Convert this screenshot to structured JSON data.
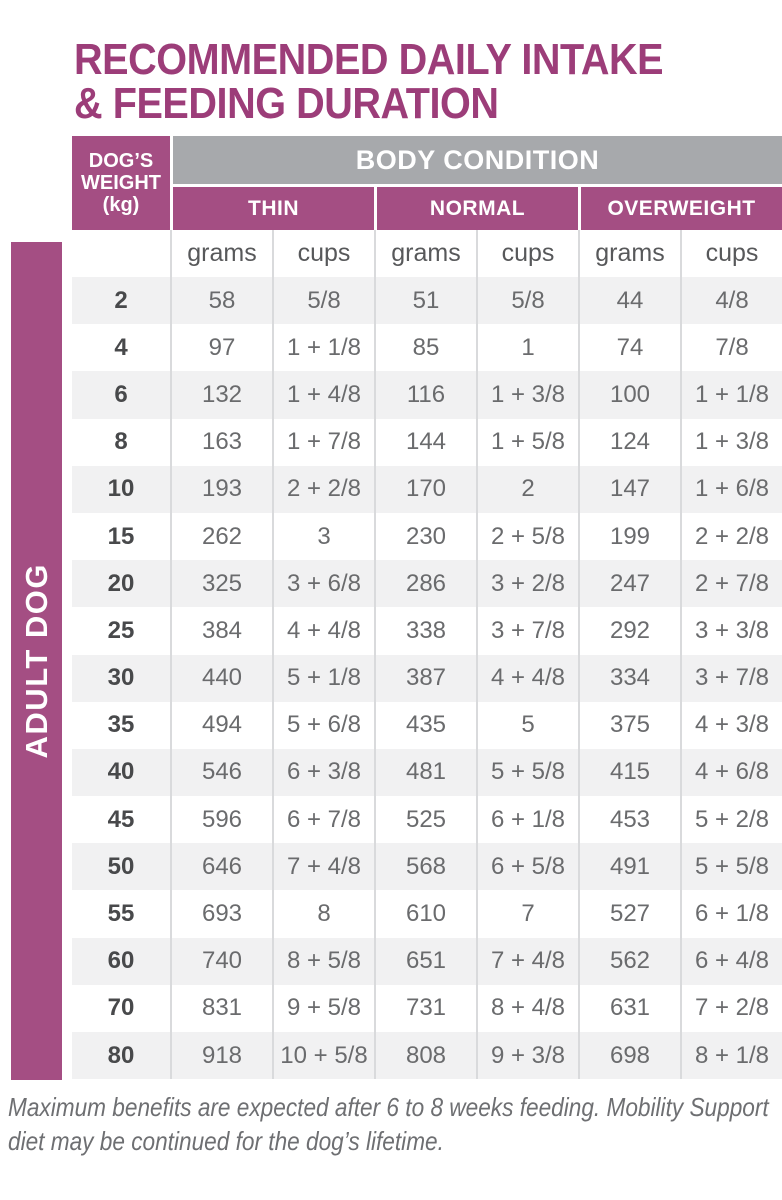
{
  "colors": {
    "accent": "#a44e83",
    "title": "#9c3d79",
    "header_gray": "#a7a9ac",
    "stripe": "#f1f1f2",
    "separator": "#d9dadc",
    "value_text": "#6a6b6d",
    "weight_text": "#48494b",
    "unit_text": "#57585a",
    "footer_text": "#6e6f72"
  },
  "title": {
    "lines": [
      "RECOMMENDED DAILY INTAKE",
      "& FEEDING DURATION"
    ]
  },
  "sidebar": {
    "label": "ADULT DOG"
  },
  "table": {
    "weight_header_lines": [
      "DOG’S",
      "WEIGHT",
      "(kg)"
    ],
    "body_condition_label": "BODY CONDITION",
    "groups": [
      "THIN",
      "NORMAL",
      "OVERWEIGHT"
    ],
    "units_row": [
      "grams",
      "cups",
      "grams",
      "cups",
      "grams",
      "cups"
    ],
    "rows": [
      [
        "2",
        "58",
        "5/8",
        "51",
        "5/8",
        "44",
        "4/8"
      ],
      [
        "4",
        "97",
        "1 + 1/8",
        "85",
        "1",
        "74",
        "7/8"
      ],
      [
        "6",
        "132",
        "1 + 4/8",
        "116",
        "1 + 3/8",
        "100",
        "1 + 1/8"
      ],
      [
        "8",
        "163",
        "1 + 7/8",
        "144",
        "1 + 5/8",
        "124",
        "1 + 3/8"
      ],
      [
        "10",
        "193",
        "2 + 2/8",
        "170",
        "2",
        "147",
        "1 + 6/8"
      ],
      [
        "15",
        "262",
        "3",
        "230",
        "2 + 5/8",
        "199",
        "2 + 2/8"
      ],
      [
        "20",
        "325",
        "3 + 6/8",
        "286",
        "3 + 2/8",
        "247",
        "2 + 7/8"
      ],
      [
        "25",
        "384",
        "4 + 4/8",
        "338",
        "3 + 7/8",
        "292",
        "3 + 3/8"
      ],
      [
        "30",
        "440",
        "5 + 1/8",
        "387",
        "4 + 4/8",
        "334",
        "3 + 7/8"
      ],
      [
        "35",
        "494",
        "5 + 6/8",
        "435",
        "5",
        "375",
        "4 + 3/8"
      ],
      [
        "40",
        "546",
        "6 + 3/8",
        "481",
        "5 + 5/8",
        "415",
        "4 + 6/8"
      ],
      [
        "45",
        "596",
        "6 + 7/8",
        "525",
        "6 + 1/8",
        "453",
        "5 + 2/8"
      ],
      [
        "50",
        "646",
        "7 + 4/8",
        "568",
        "6 + 5/8",
        "491",
        "5 + 5/8"
      ],
      [
        "55",
        "693",
        "8",
        "610",
        "7",
        "527",
        "6 + 1/8"
      ],
      [
        "60",
        "740",
        "8 + 5/8",
        "651",
        "7 + 4/8",
        "562",
        "6 + 4/8"
      ],
      [
        "70",
        "831",
        "9 + 5/8",
        "731",
        "8 + 4/8",
        "631",
        "7 + 2/8"
      ],
      [
        "80",
        "918",
        "10 + 5/8",
        "808",
        "9 + 3/8",
        "698",
        "8 + 1/8"
      ]
    ]
  },
  "footer": {
    "lines": [
      "Maximum benefits are expected after 6 to 8 weeks feeding. Mobility Support",
      "diet may be continued for the dog’s lifetime."
    ]
  }
}
